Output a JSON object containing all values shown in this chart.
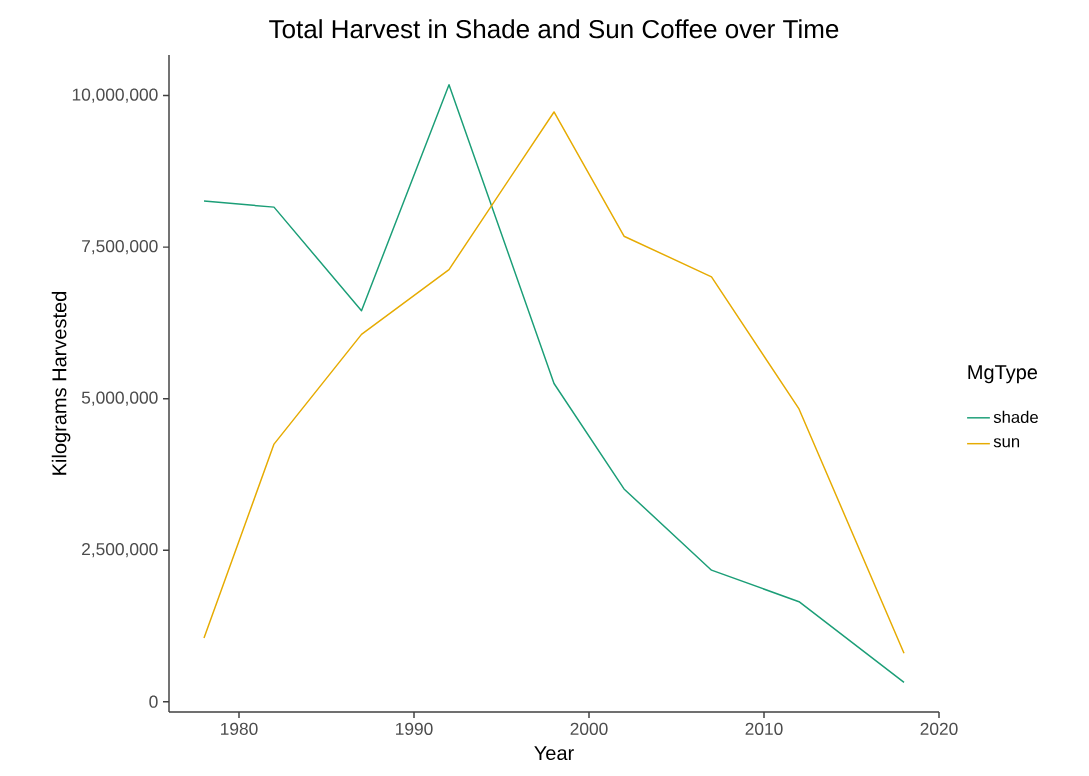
{
  "chart_data": {
    "type": "line",
    "title": "Total Harvest in Shade and Sun Coffee over Time",
    "xlabel": "Year",
    "ylabel": "Kilograms Harvested",
    "legend_title": "MgType",
    "x": [
      1978,
      1982,
      1987,
      1992,
      1998,
      2002,
      2007,
      2012,
      2018
    ],
    "series": [
      {
        "name": "shade",
        "color": "#1b9e77",
        "values": [
          8260000,
          8160000,
          6450000,
          10180000,
          5250000,
          3510000,
          2170000,
          1650000,
          320000
        ]
      },
      {
        "name": "sun",
        "color": "#e6ab02",
        "values": [
          1050000,
          4250000,
          6060000,
          7130000,
          9730000,
          7680000,
          7010000,
          4830000,
          800000
        ]
      }
    ],
    "xlim": [
      1976,
      2020
    ],
    "ylim": [
      -170000,
      10670000
    ],
    "xticks": [
      1980,
      1990,
      2000,
      2010,
      2020
    ],
    "yticks": [
      0,
      {
        "value": 2500000,
        "label": "2,500,000"
      },
      {
        "value": 5000000,
        "label": "5,000,000"
      },
      {
        "value": 7500000,
        "label": "7,500,000"
      },
      {
        "value": 10000000,
        "label": "10,000,000"
      }
    ],
    "grid": false,
    "legend": "right"
  }
}
